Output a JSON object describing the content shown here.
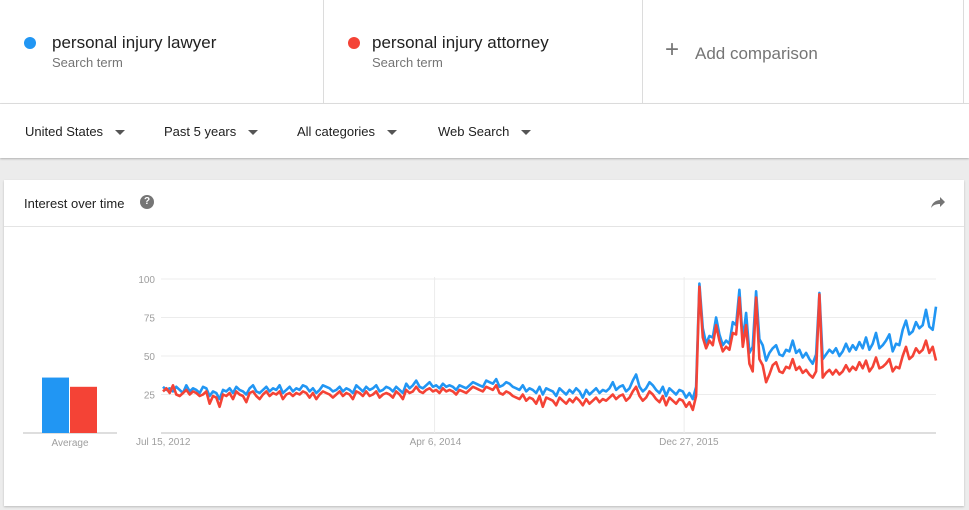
{
  "terms": [
    {
      "name": "personal injury lawyer",
      "sub": "Search term",
      "color": "#2196f3"
    },
    {
      "name": "personal injury attorney",
      "sub": "Search term",
      "color": "#f44336"
    }
  ],
  "add_comparison": {
    "label": "Add comparison",
    "icon": "plus-icon"
  },
  "filters": [
    {
      "label": "United States"
    },
    {
      "label": "Past 5 years"
    },
    {
      "label": "All categories"
    },
    {
      "label": "Web Search"
    }
  ],
  "card": {
    "title": "Interest over time",
    "help_icon": "question-icon",
    "share_icon": "share-arrow-icon"
  },
  "chart_data": {
    "type": "line",
    "title": "Interest over time",
    "ylim": [
      0,
      100
    ],
    "yticks": [
      100,
      75,
      50,
      25
    ],
    "xticks": [
      "Jul 15, 2012",
      "Apr 6, 2014",
      "Dec 27, 2015"
    ],
    "grid": true,
    "average": {
      "label": "Average",
      "values": [
        {
          "series": "personal injury lawyer",
          "value": 36
        },
        {
          "series": "personal injury attorney",
          "value": 30
        }
      ]
    },
    "series": [
      {
        "name": "personal injury lawyer",
        "color": "#2196f3",
        "values": [
          30,
          28,
          29,
          27,
          30,
          28,
          26,
          31,
          27,
          29,
          28,
          26,
          30,
          29,
          24,
          27,
          26,
          22,
          28,
          27,
          29,
          26,
          30,
          28,
          27,
          25,
          29,
          31,
          27,
          26,
          28,
          30,
          27,
          29,
          28,
          31,
          26,
          28,
          30,
          27,
          29,
          28,
          31,
          30,
          27,
          29,
          26,
          28,
          31,
          30,
          29,
          27,
          28,
          30,
          27,
          29,
          28,
          26,
          31,
          29,
          27,
          30,
          28,
          29,
          31,
          27,
          28,
          30,
          29,
          27,
          30,
          28,
          26,
          32,
          29,
          31,
          34,
          30,
          29,
          31,
          33,
          30,
          31,
          29,
          32,
          30,
          31,
          30,
          28,
          31,
          30,
          29,
          31,
          33,
          32,
          31,
          30,
          34,
          33,
          32,
          35,
          30,
          31,
          33,
          32,
          30,
          29,
          28,
          31,
          27,
          29,
          28,
          26,
          30,
          25,
          29,
          28,
          27,
          24,
          29,
          27,
          25,
          28,
          26,
          29,
          27,
          23,
          28,
          25,
          27,
          29,
          26,
          28,
          27,
          29,
          33,
          28,
          30,
          31,
          27,
          29,
          34,
          38,
          30,
          27,
          29,
          33,
          31,
          28,
          26,
          30,
          24,
          29,
          27,
          25,
          28,
          27,
          23,
          26,
          22,
          30,
          97,
          68,
          58,
          63,
          62,
          75,
          64,
          57,
          60,
          58,
          72,
          70,
          93,
          60,
          78,
          52,
          56,
          92,
          61,
          57,
          47,
          52,
          55,
          57,
          51,
          50,
          54,
          53,
          60,
          52,
          54,
          49,
          52,
          48,
          45,
          51,
          91,
          48,
          51,
          54,
          52,
          55,
          50,
          53,
          58,
          53,
          57,
          54,
          59,
          55,
          62,
          54,
          58,
          65,
          55,
          57,
          60,
          64,
          53,
          58,
          57,
          67,
          73,
          64,
          66,
          72,
          68,
          70,
          80,
          69,
          67,
          82
        ]
      },
      {
        "name": "personal injury attorney",
        "color": "#f44336",
        "values": [
          27,
          29,
          26,
          31,
          25,
          24,
          26,
          28,
          25,
          27,
          26,
          24,
          25,
          27,
          19,
          24,
          23,
          17,
          25,
          24,
          26,
          22,
          27,
          25,
          24,
          20,
          26,
          27,
          24,
          22,
          25,
          27,
          24,
          26,
          25,
          27,
          22,
          25,
          26,
          24,
          26,
          25,
          27,
          26,
          23,
          26,
          22,
          25,
          27,
          26,
          25,
          23,
          25,
          27,
          24,
          26,
          25,
          22,
          27,
          26,
          24,
          27,
          24,
          25,
          27,
          23,
          25,
          26,
          25,
          23,
          27,
          25,
          22,
          28,
          26,
          27,
          30,
          27,
          26,
          28,
          29,
          27,
          28,
          26,
          29,
          27,
          28,
          27,
          25,
          28,
          27,
          26,
          28,
          30,
          29,
          28,
          27,
          30,
          29,
          28,
          31,
          26,
          25,
          27,
          26,
          24,
          23,
          22,
          25,
          21,
          23,
          22,
          19,
          24,
          17,
          23,
          22,
          21,
          18,
          23,
          21,
          19,
          22,
          20,
          23,
          21,
          18,
          22,
          19,
          21,
          23,
          20,
          22,
          21,
          23,
          25,
          22,
          24,
          25,
          21,
          23,
          27,
          30,
          24,
          21,
          23,
          27,
          25,
          22,
          20,
          24,
          18,
          23,
          21,
          19,
          22,
          21,
          17,
          20,
          15,
          24,
          95,
          62,
          55,
          60,
          57,
          70,
          60,
          53,
          56,
          54,
          65,
          64,
          88,
          56,
          70,
          45,
          40,
          88,
          48,
          44,
          33,
          38,
          44,
          46,
          40,
          39,
          43,
          42,
          48,
          41,
          43,
          39,
          41,
          38,
          36,
          40,
          90,
          36,
          39,
          41,
          38,
          41,
          38,
          40,
          44,
          40,
          43,
          41,
          46,
          42,
          47,
          40,
          43,
          49,
          42,
          43,
          45,
          48,
          40,
          43,
          42,
          50,
          56,
          48,
          50,
          55,
          52,
          54,
          60,
          52,
          56,
          47
        ]
      }
    ]
  }
}
